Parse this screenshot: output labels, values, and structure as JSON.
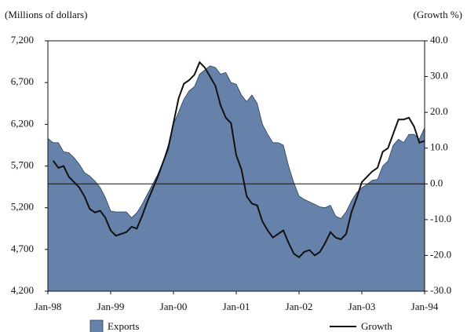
{
  "chart_data": {
    "type": "area-line",
    "y_axis_label": "(Millions of dollars)",
    "y2_axis_label": "(Growth %)",
    "categories": [
      "Jan-98",
      null,
      null,
      null,
      null,
      null,
      null,
      null,
      null,
      null,
      null,
      null,
      "Jan-99",
      null,
      null,
      null,
      null,
      null,
      null,
      null,
      null,
      null,
      null,
      null,
      "Jan-00",
      null,
      null,
      null,
      null,
      null,
      null,
      null,
      null,
      null,
      null,
      null,
      "Jan-01",
      null,
      null,
      null,
      null,
      null,
      null,
      null,
      null,
      null,
      null,
      null,
      "Jan-02",
      null,
      null,
      null,
      null,
      null,
      null,
      null,
      null,
      null,
      null,
      null,
      "Jan-03",
      null,
      null,
      null,
      null,
      null,
      null,
      null,
      null,
      null,
      null,
      null,
      "Jan-94"
    ],
    "series": [
      {
        "name": "Exports",
        "type": "area",
        "axis": "y",
        "color": "#6682ab",
        "values": [
          6030,
          5980,
          5980,
          5870,
          5860,
          5800,
          5720,
          5620,
          5580,
          5520,
          5440,
          5320,
          5160,
          5150,
          5150,
          5150,
          5080,
          5140,
          5240,
          5360,
          5480,
          5600,
          5750,
          5950,
          6200,
          6350,
          6500,
          6600,
          6650,
          6800,
          6850,
          6900,
          6880,
          6800,
          6820,
          6700,
          6680,
          6550,
          6470,
          6550,
          6450,
          6200,
          6080,
          5980,
          5980,
          5950,
          5700,
          5500,
          5340,
          5300,
          5270,
          5240,
          5210,
          5200,
          5230,
          5100,
          5070,
          5150,
          5280,
          5380,
          5440,
          5480,
          5530,
          5540,
          5700,
          5760,
          5950,
          6020,
          5980,
          6080,
          6080,
          6020,
          6160
        ]
      },
      {
        "name": "Growth",
        "type": "line",
        "axis": "y2",
        "color": "#111111",
        "values": [
          null,
          6.5,
          4.5,
          5,
          2,
          0.5,
          -1,
          -3.5,
          -7,
          -8,
          -7.5,
          -9.5,
          -13,
          -14.5,
          -14,
          -13.5,
          -12,
          -12.5,
          -9,
          -5,
          -1.5,
          2,
          6,
          10,
          17,
          24,
          28,
          29,
          30.5,
          34,
          32.5,
          30,
          27.5,
          22,
          18.5,
          17,
          8,
          4,
          -3.5,
          -5.5,
          -6,
          -10.5,
          -13,
          -15,
          -14,
          -13,
          -16.5,
          -19.5,
          -20.5,
          -19,
          -18.5,
          -20,
          -19,
          -16.5,
          -13.5,
          -15,
          -15.5,
          -14,
          -8,
          -4,
          0.5,
          2,
          3.5,
          4.5,
          9,
          10,
          14,
          18,
          18,
          18.5,
          16,
          11.5,
          12
        ]
      }
    ],
    "ylim": [
      4200,
      7200
    ],
    "yticks": [
      {
        "value": 4200,
        "label": "4,200"
      },
      {
        "value": 4700,
        "label": "4,700"
      },
      {
        "value": 5200,
        "label": "5,200"
      },
      {
        "value": 5700,
        "label": "5,700"
      },
      {
        "value": 6200,
        "label": "6,200"
      },
      {
        "value": 6700,
        "label": "6,700"
      },
      {
        "value": 7200,
        "label": "7,200"
      }
    ],
    "y2lim": [
      -30,
      40
    ],
    "y2ticks": [
      {
        "value": -30,
        "label": "-30.0"
      },
      {
        "value": -20,
        "label": "-20.0"
      },
      {
        "value": -10,
        "label": "-10.0"
      },
      {
        "value": 0,
        "label": "0.0"
      },
      {
        "value": 10,
        "label": "10.0"
      },
      {
        "value": 20,
        "label": "20.0"
      },
      {
        "value": 30,
        "label": "30.0"
      },
      {
        "value": 40,
        "label": "40.0"
      }
    ],
    "zero_line": true,
    "legend": "bottom"
  }
}
